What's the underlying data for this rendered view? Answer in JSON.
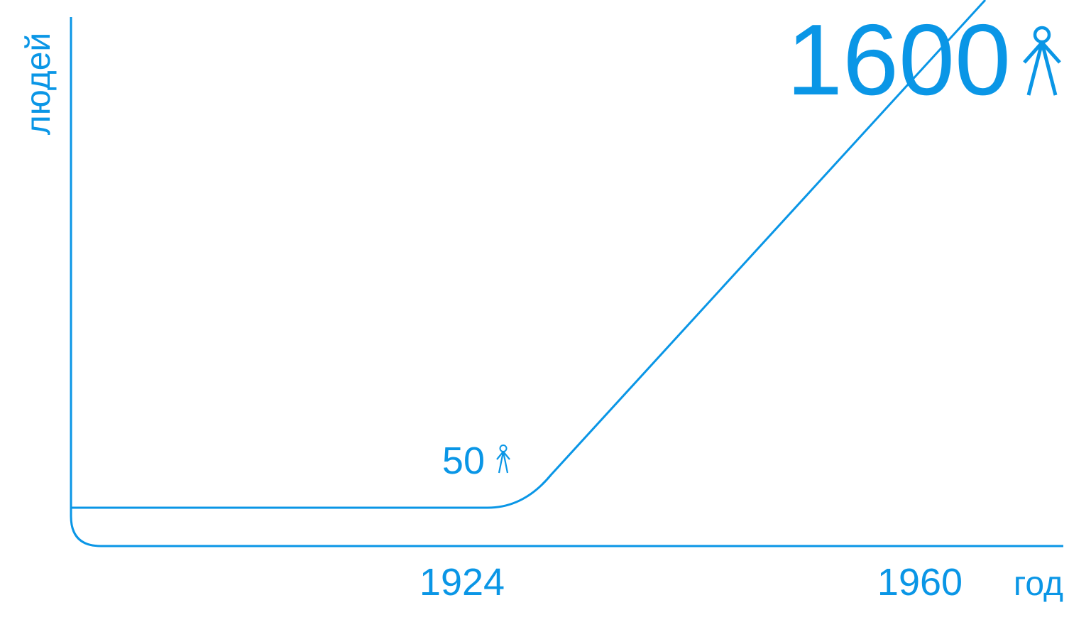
{
  "colors": {
    "accent": "#0a96e6",
    "background": "#ffffff"
  },
  "chart_data": {
    "type": "line",
    "ylabel": "людей",
    "xlabel": "год",
    "x_tick_labels": [
      "1924",
      "1960"
    ],
    "series": [
      {
        "points": [
          {
            "x": 1924,
            "y": 50
          },
          {
            "x": 1960,
            "y": 1600
          }
        ]
      }
    ],
    "annotations": [
      {
        "x": 1924,
        "y": 50,
        "text": "50",
        "icon": "person-icon",
        "size": "small"
      },
      {
        "x": 1960,
        "y": 1600,
        "text": "1600",
        "icon": "person-icon",
        "size": "large"
      }
    ],
    "grid": false,
    "legend": "none"
  }
}
